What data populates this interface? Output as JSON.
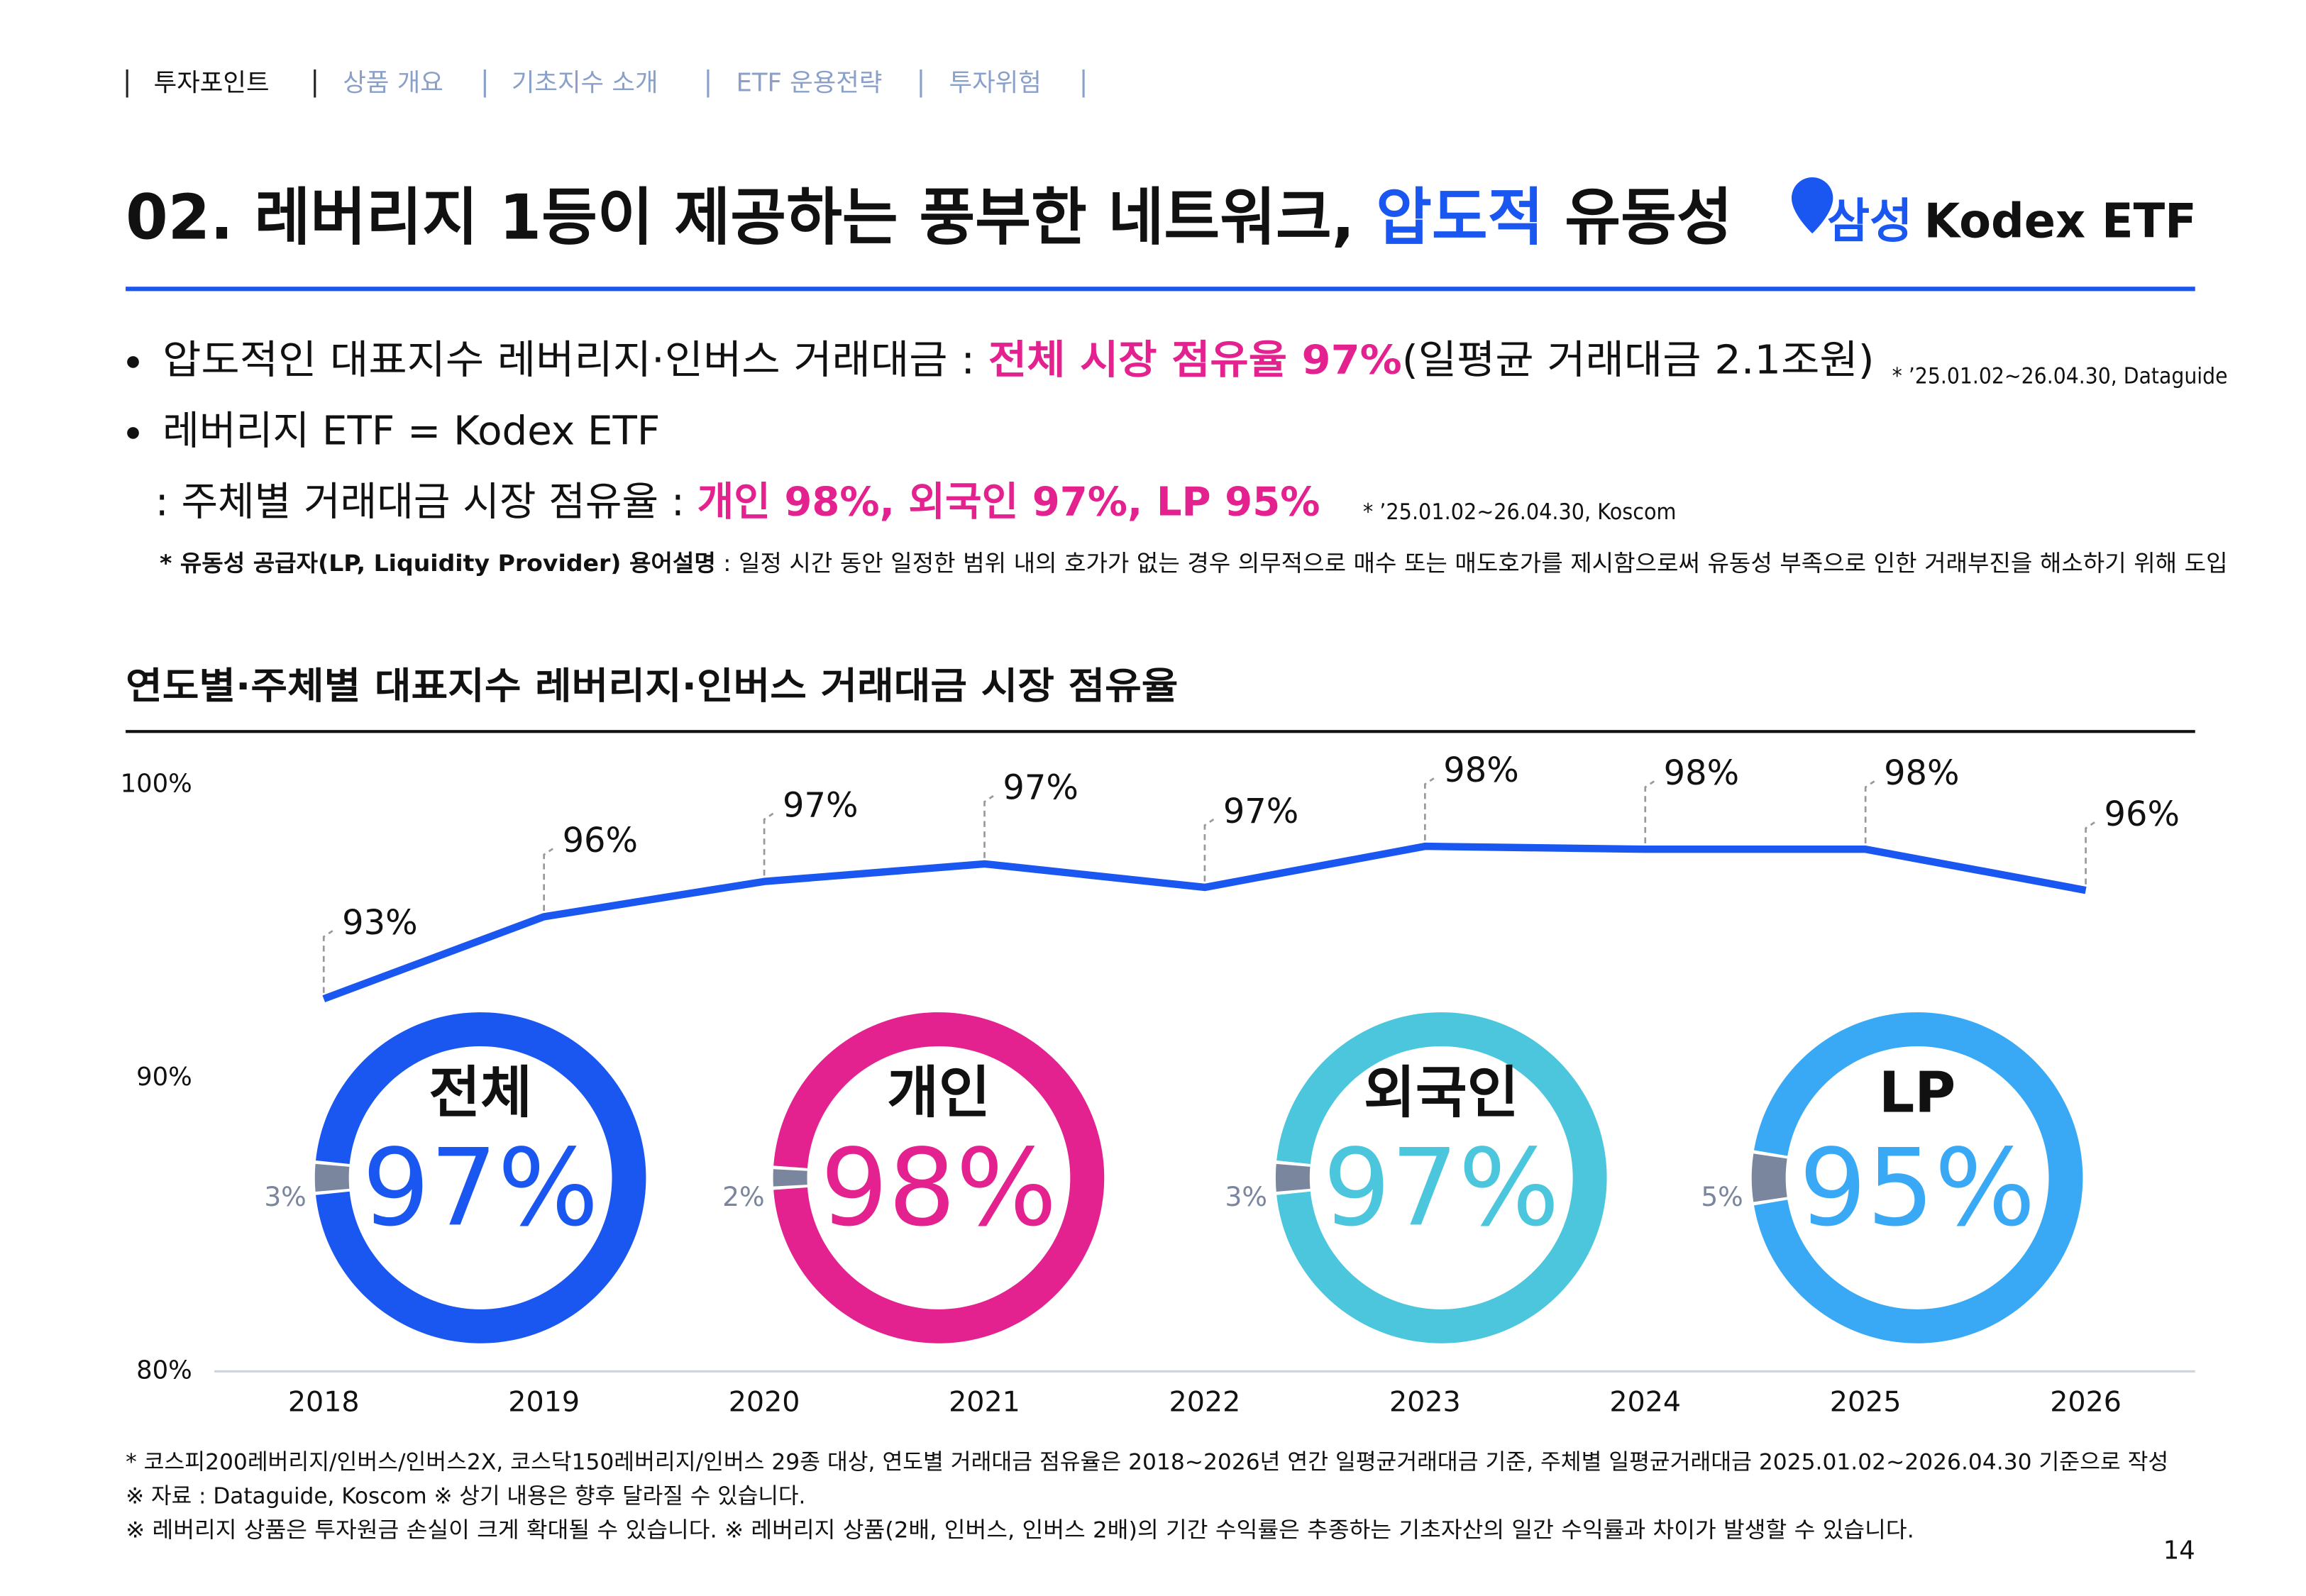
{
  "nav": {
    "items": [
      "투자포인트",
      "상품 개요",
      "기초지수 소개",
      "ETF 운용전략",
      "투자위험"
    ]
  },
  "header": {
    "title_parts": [
      "02. 레버리지 1등이 제공하는 풍부한 네트워크, ",
      "압도적",
      " 유동성"
    ],
    "brand": [
      "삼성",
      "Kodex ETF"
    ]
  },
  "bullets": [
    {
      "parts": [
        "압도적인 대표지수 레버리지·인버스 거래대금 : ",
        "전체 시장 점유율 97%",
        "(일평균 거래대금 2.1조원)"
      ],
      "note": "* ’25.01.02~26.04.30, Dataguide"
    },
    {
      "parts": [
        "레버리지 ETF = Kodex ETF"
      ]
    },
    {
      "parts": [
        ": 주체별 거래대금 시장 점유율 : ",
        "개인 98%, 외국인 97%, LP 95%"
      ],
      "note": "* ’25.01.02~26.04.30, Koscom"
    },
    {
      "parts": [
        "* 유동성 공급자(LP, Liquidity Provider) 용어설명",
        " : 일정 시간 동안 일정한 범위 내의 호가가 없는 경우 의무적으로 매수 또는 매도호가를 제시함으로써 유동성 부족으로 인한 거래부진을 해소하기 위해 도입"
      ]
    }
  ],
  "section_title": "연도별·주체별 대표지수 레버리지·인버스 거래대금 시장 점유율",
  "chart_data": [
    {
      "type": "line",
      "categories": [
        "2018",
        "2019",
        "2020",
        "2021",
        "2022",
        "2023",
        "2024",
        "2025",
        "2026"
      ],
      "values": [
        92.7,
        95.5,
        96.7,
        97.3,
        96.5,
        97.9,
        97.8,
        97.8,
        96.4
      ],
      "value_labels": [
        "93%",
        "96%",
        "97%",
        "97%",
        "97%",
        "98%",
        "98%",
        "98%",
        "96%"
      ],
      "color": "#1a56f0",
      "ylim": [
        80,
        100
      ],
      "yticks": [
        {
          "value": 80,
          "label": "80%"
        },
        {
          "value": 90,
          "label": "90%"
        },
        {
          "value": 100,
          "label": "100%"
        }
      ],
      "grid": false
    },
    {
      "type": "donut",
      "title": "전체",
      "values": [
        97,
        3
      ],
      "value_labels": [
        "97%",
        "3%"
      ],
      "colors": [
        "#1a56f0",
        "#7a859e"
      ]
    },
    {
      "type": "donut",
      "title": "개인",
      "values": [
        98,
        2
      ],
      "value_labels": [
        "98%",
        "2%"
      ],
      "colors": [
        "#e3218f",
        "#7a859e"
      ]
    },
    {
      "type": "donut",
      "title": "외국인",
      "values": [
        97,
        3
      ],
      "value_labels": [
        "97%",
        "3%"
      ],
      "colors": [
        "#4bc6dc",
        "#7a859e"
      ]
    },
    {
      "type": "donut",
      "title": "LP",
      "values": [
        95,
        5
      ],
      "value_labels": [
        "95%",
        "5%"
      ],
      "colors": [
        "#3aa9f5",
        "#7a859e"
      ]
    }
  ],
  "footnotes": [
    "* 코스피200레버리지/인버스/인버스2X, 코스닥150레버리지/인버스 29종 대상, 연도별 거래대금 점유율은 2018~2026년 연간 일평균거래대금 기준, 주체별 일평균거래대금 2025.01.02~2026.04.30 기준으로 작성",
    "※ 자료 : Dataguide, Koscom ※ 상기 내용은 향후 달라질 수 있습니다.",
    "※ 레버리지 상품은 투자원금 손실이 크게 확대될 수 있습니다. ※ 레버리지 상품(2배, 인버스, 인버스 2배)의 기간 수익률은 추종하는 기초자산의 일간 수익률과 차이가 발생할 수 있습니다."
  ],
  "page_number": "14"
}
